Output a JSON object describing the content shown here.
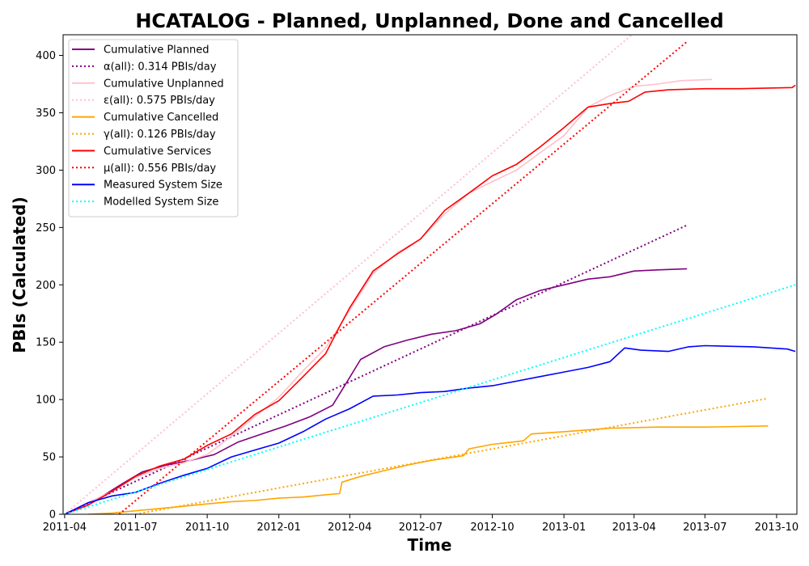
{
  "chart_data": {
    "type": "line",
    "title": "HCATALOG - Planned, Unplanned, Done  and Cancelled",
    "xlabel": "Time",
    "ylabel": "PBIs (Calculated)",
    "x_range": [
      "2011-03-30",
      "2013-10-27"
    ],
    "ylim": [
      0,
      418
    ],
    "x_ticks": [
      {
        "date": "2011-04-01",
        "label": "2011-04"
      },
      {
        "date": "2011-07-01",
        "label": "2011-07"
      },
      {
        "date": "2011-10-01",
        "label": "2011-10"
      },
      {
        "date": "2012-01-01",
        "label": "2012-01"
      },
      {
        "date": "2012-04-01",
        "label": "2012-04"
      },
      {
        "date": "2012-07-01",
        "label": "2012-07"
      },
      {
        "date": "2012-10-01",
        "label": "2012-10"
      },
      {
        "date": "2013-01-01",
        "label": "2013-01"
      },
      {
        "date": "2013-04-01",
        "label": "2013-04"
      },
      {
        "date": "2013-07-01",
        "label": "2013-07"
      },
      {
        "date": "2013-10-01",
        "label": "2013-10"
      }
    ],
    "y_ticks": [
      0,
      50,
      100,
      150,
      200,
      250,
      300,
      350,
      400
    ],
    "grid": false,
    "legend_position": "upper-left",
    "series": [
      {
        "name": "Cumulative Planned",
        "color": "#800080",
        "style": "solid",
        "x": [
          "2011-04-01",
          "2011-04-25",
          "2011-05-20",
          "2011-06-15",
          "2011-07-10",
          "2011-08-10",
          "2011-09-10",
          "2011-10-10",
          "2011-11-10",
          "2011-12-10",
          "2012-01-10",
          "2012-02-10",
          "2012-03-10",
          "2012-03-28",
          "2012-04-15",
          "2012-05-15",
          "2012-06-15",
          "2012-07-15",
          "2012-08-15",
          "2012-09-15",
          "2012-10-05",
          "2012-11-01",
          "2012-12-01",
          "2013-01-01",
          "2013-02-01",
          "2013-03-01",
          "2013-04-01",
          "2013-05-01",
          "2013-06-08"
        ],
        "y": [
          0,
          8,
          16,
          27,
          37,
          43,
          47,
          52,
          63,
          70,
          77,
          85,
          95,
          115,
          135,
          146,
          152,
          157,
          160,
          166,
          174,
          187,
          195,
          200,
          205,
          207,
          212,
          213,
          214
        ]
      },
      {
        "name": "α(all): 0.314 PBIs/day",
        "color": "#800080",
        "style": "dotted",
        "x": [
          "2011-04-01",
          "2013-06-08"
        ],
        "y": [
          0,
          252
        ]
      },
      {
        "name": "Cumulative Unplanned",
        "color": "#ffc0cb",
        "style": "solid",
        "x": [
          "2011-04-01",
          "2011-05-01",
          "2011-06-01",
          "2011-07-01",
          "2011-08-01",
          "2011-09-01",
          "2011-10-01",
          "2011-11-01",
          "2011-12-01",
          "2012-01-01",
          "2012-02-01",
          "2012-03-01",
          "2012-04-01",
          "2012-05-01",
          "2012-06-01",
          "2012-07-01",
          "2012-08-01",
          "2012-09-01",
          "2012-10-01",
          "2012-11-01",
          "2012-12-01",
          "2013-01-01",
          "2013-02-01",
          "2013-03-01",
          "2013-04-01",
          "2013-05-01",
          "2013-06-01",
          "2013-07-10"
        ],
        "y": [
          0,
          10,
          20,
          32,
          40,
          45,
          52,
          68,
          85,
          102,
          125,
          145,
          178,
          210,
          228,
          240,
          262,
          280,
          290,
          300,
          315,
          330,
          355,
          365,
          373,
          375,
          378,
          379
        ]
      },
      {
        "name": "ε(all): 0.575 PBIs/day",
        "color": "#ffc0cb",
        "style": "dotted",
        "x": [
          "2011-04-01",
          "2013-07-10"
        ],
        "y": [
          0,
          477
        ]
      },
      {
        "name": "Cumulative Cancelled",
        "color": "#ffa500",
        "style": "solid",
        "x": [
          "2011-05-01",
          "2011-06-01",
          "2011-07-01",
          "2011-08-01",
          "2011-09-01",
          "2011-10-01",
          "2011-11-01",
          "2011-12-01",
          "2012-01-01",
          "2012-02-01",
          "2012-03-01",
          "2012-03-19",
          "2012-03-22",
          "2012-04-15",
          "2012-05-15",
          "2012-06-15",
          "2012-07-15",
          "2012-08-25",
          "2012-09-01",
          "2012-10-01",
          "2012-11-10",
          "2012-11-20",
          "2013-01-01",
          "2013-03-01",
          "2013-05-01",
          "2013-07-01",
          "2013-09-20"
        ],
        "y": [
          0,
          1,
          3,
          5,
          7,
          9,
          11,
          12,
          14,
          15,
          17,
          18,
          28,
          33,
          38,
          43,
          47,
          51,
          57,
          61,
          64,
          70,
          72,
          75,
          76,
          76,
          77
        ]
      },
      {
        "name": "γ(all): 0.126 PBIs/day",
        "color": "#ffa500",
        "style": "dotted",
        "x": [
          "2011-07-01",
          "2013-09-20"
        ],
        "y": [
          0,
          101
        ]
      },
      {
        "name": "Cumulative Services",
        "color": "#ff0000",
        "style": "solid",
        "x": [
          "2011-04-01",
          "2011-05-01",
          "2011-06-01",
          "2011-07-01",
          "2011-08-01",
          "2011-09-01",
          "2011-10-01",
          "2011-11-01",
          "2011-12-01",
          "2012-01-01",
          "2012-02-01",
          "2012-03-01",
          "2012-03-20",
          "2012-04-01",
          "2012-05-01",
          "2012-06-01",
          "2012-07-01",
          "2012-08-01",
          "2012-09-01",
          "2012-10-01",
          "2012-11-01",
          "2012-12-01",
          "2013-01-01",
          "2013-02-01",
          "2013-03-01",
          "2013-03-25",
          "2013-04-15",
          "2013-05-15",
          "2013-07-01",
          "2013-08-15",
          "2013-10-21",
          "2013-10-25"
        ],
        "y": [
          0,
          8,
          20,
          33,
          42,
          48,
          60,
          70,
          87,
          99,
          120,
          140,
          165,
          180,
          212,
          227,
          240,
          265,
          280,
          295,
          305,
          320,
          337,
          355,
          358,
          360,
          368,
          370,
          371,
          371,
          372,
          374
        ]
      },
      {
        "name": "μ(all): 0.556 PBIs/day",
        "color": "#ff0000",
        "style": "dotted",
        "x": [
          "2011-06-10",
          "2013-06-08"
        ],
        "y": [
          0,
          412
        ]
      },
      {
        "name": "Measured System Size",
        "color": "#0000ff",
        "style": "solid",
        "x": [
          "2011-04-01",
          "2011-05-01",
          "2011-06-01",
          "2011-07-01",
          "2011-08-01",
          "2011-09-01",
          "2011-10-01",
          "2011-11-01",
          "2011-12-01",
          "2012-01-01",
          "2012-02-01",
          "2012-03-01",
          "2012-04-01",
          "2012-05-01",
          "2012-06-01",
          "2012-07-01",
          "2012-08-01",
          "2012-09-01",
          "2012-10-01",
          "2012-11-01",
          "2012-12-01",
          "2013-01-01",
          "2013-02-01",
          "2013-03-01",
          "2013-03-20",
          "2013-04-10",
          "2013-05-15",
          "2013-06-10",
          "2013-07-01",
          "2013-09-01",
          "2013-10-15",
          "2013-10-25"
        ],
        "y": [
          0,
          10,
          16,
          19,
          27,
          34,
          40,
          50,
          56,
          62,
          72,
          83,
          92,
          103,
          104,
          106,
          107,
          110,
          112,
          116,
          120,
          124,
          128,
          133,
          145,
          143,
          142,
          146,
          147,
          146,
          144,
          142
        ]
      },
      {
        "name": "Modelled System Size",
        "color": "#00ffff",
        "style": "dotted",
        "x": [
          "2011-04-01",
          "2013-10-25"
        ],
        "y": [
          0,
          200
        ]
      }
    ]
  }
}
